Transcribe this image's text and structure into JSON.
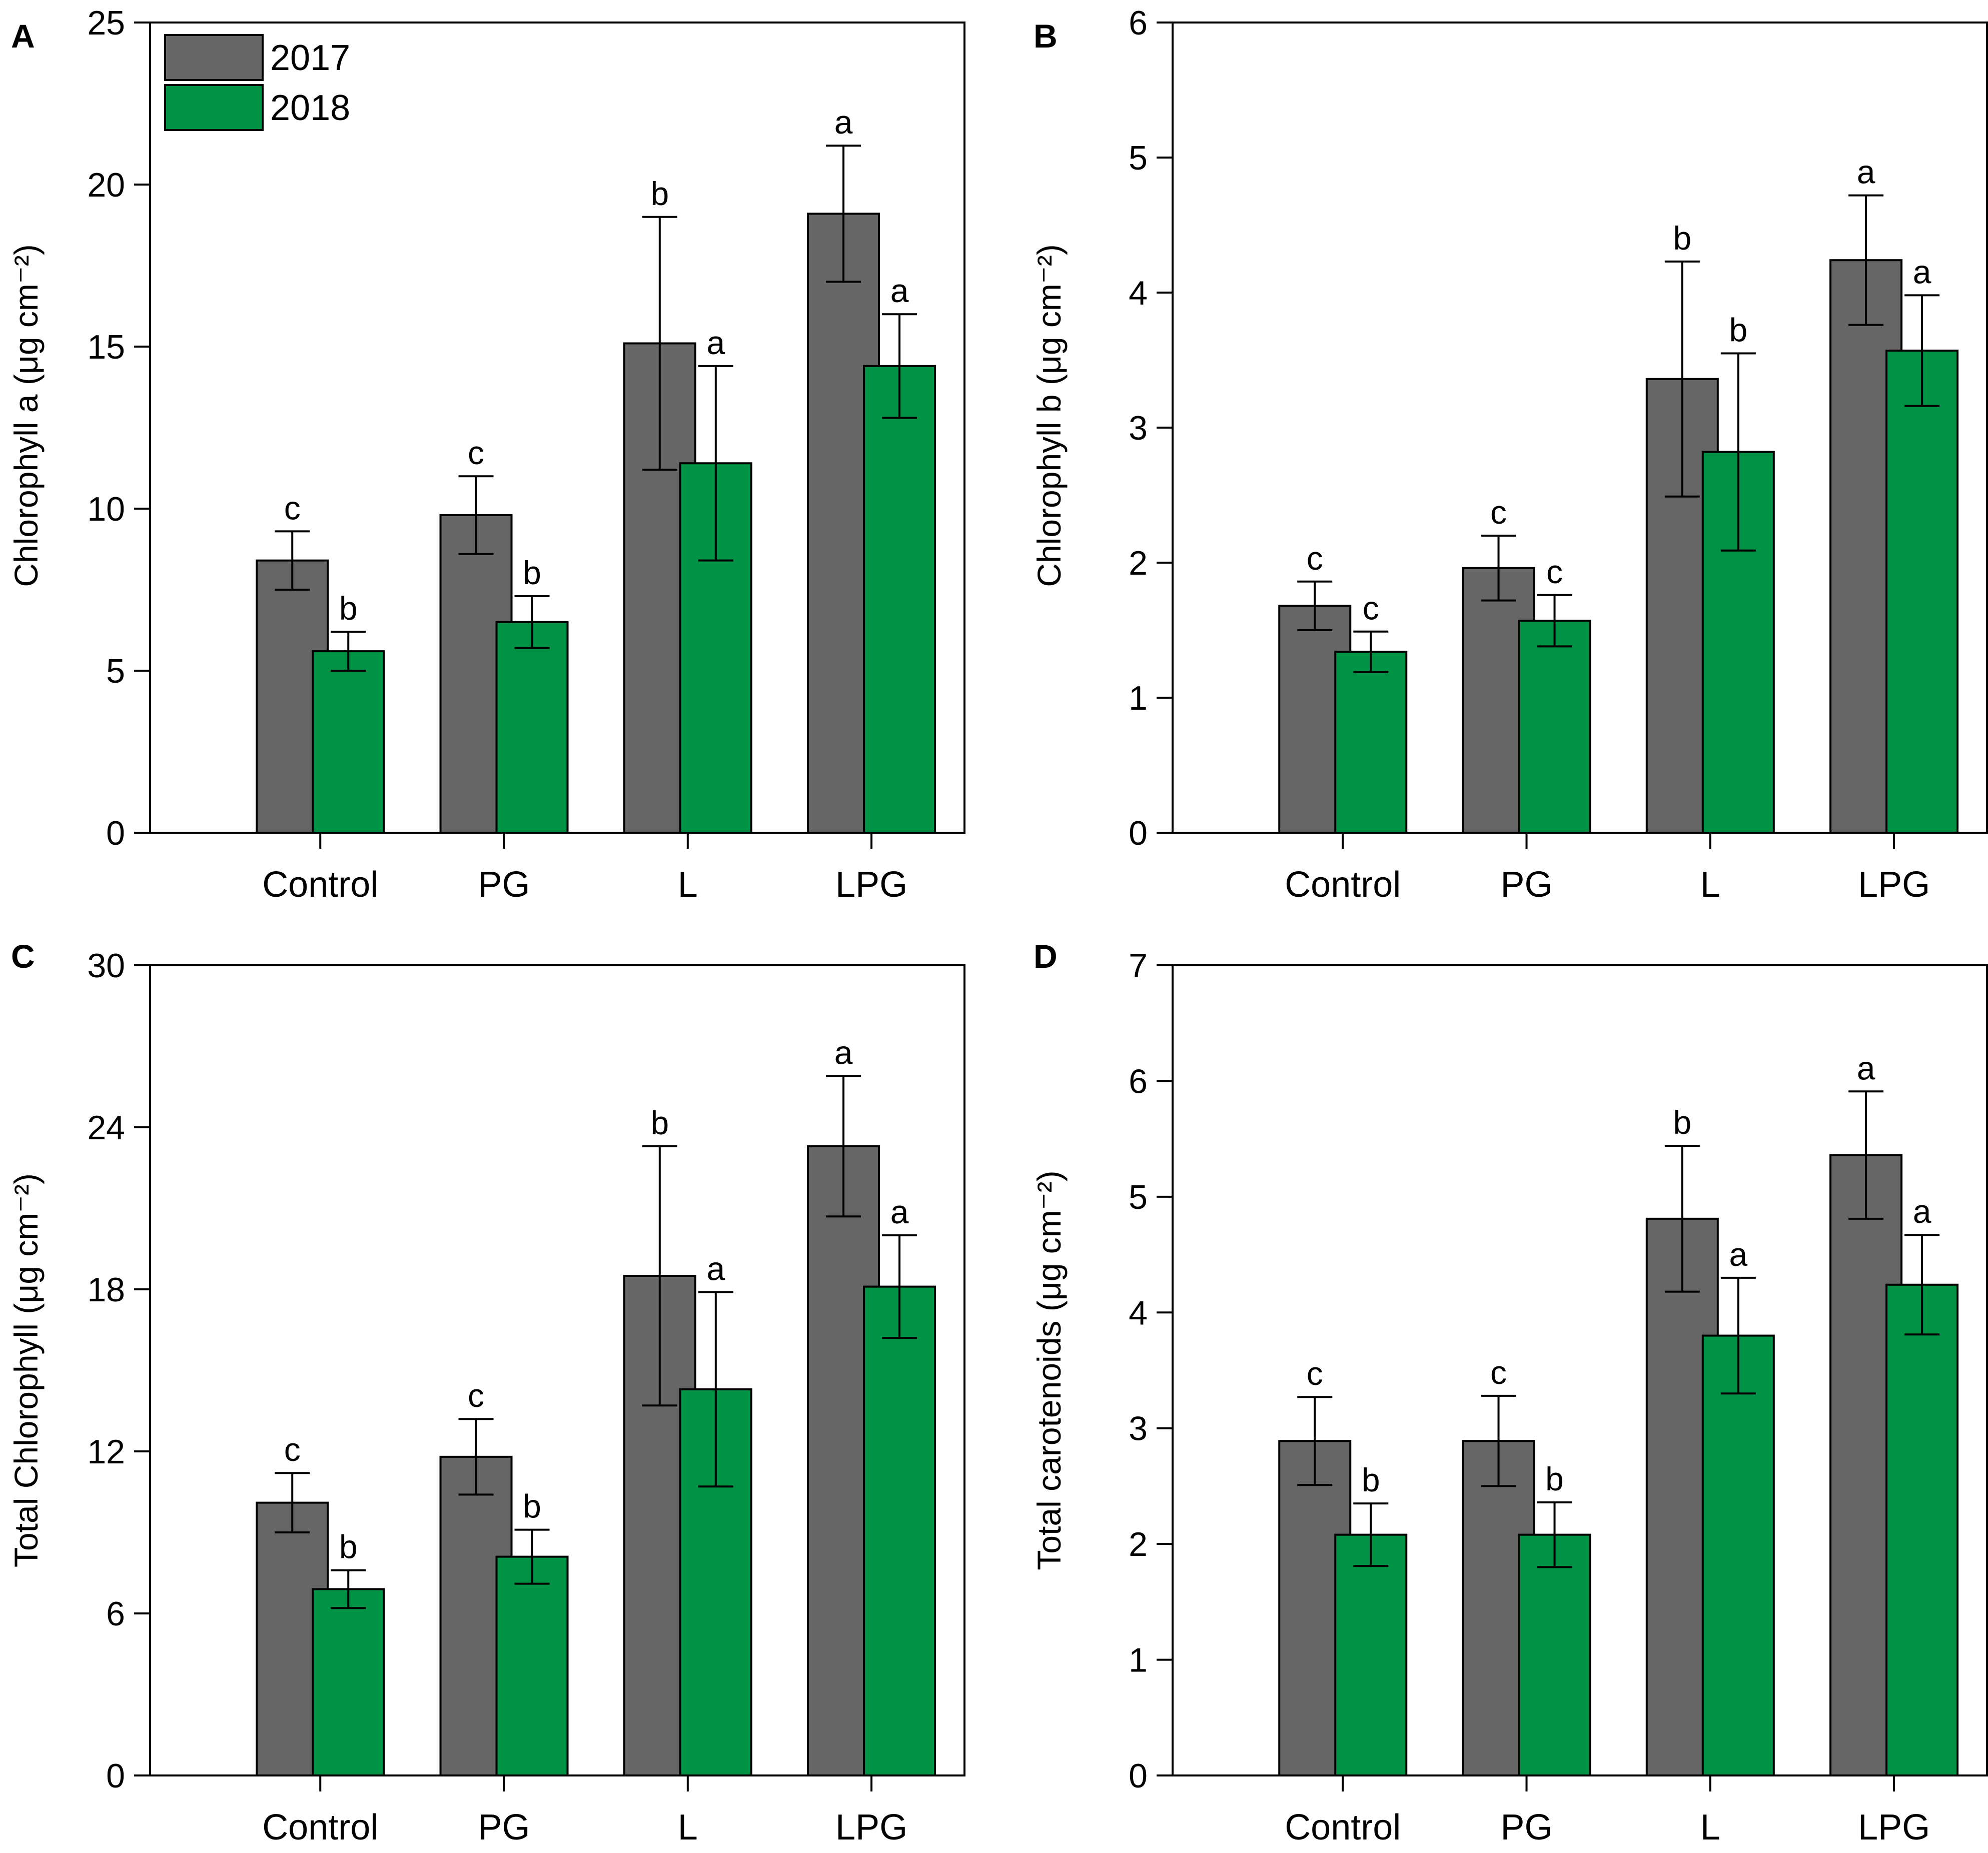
{
  "colors": {
    "series_2017": "#666666",
    "series_2018": "#009245",
    "axis": "#000000"
  },
  "legend": [
    {
      "name": "2017"
    },
    {
      "name": "2018"
    }
  ],
  "chart_data": [
    {
      "panel": "A",
      "type": "bar",
      "ylabel": "Chlorophyll a (μg cm⁻²)",
      "ylim": [
        0,
        25
      ],
      "yticks": [
        0,
        5,
        10,
        15,
        20,
        25
      ],
      "categories": [
        "Control",
        "PG",
        "L",
        "LPG"
      ],
      "series": [
        {
          "name": "2017",
          "values": [
            8.4,
            9.8,
            15.1,
            19.1
          ],
          "errors": [
            0.9,
            1.2,
            3.9,
            2.1
          ],
          "letters": [
            "c",
            "c",
            "b",
            "a"
          ]
        },
        {
          "name": "2018",
          "values": [
            5.6,
            6.5,
            11.4,
            14.4
          ],
          "errors": [
            0.6,
            0.8,
            3.0,
            1.6
          ],
          "letters": [
            "b",
            "b",
            "a",
            "a"
          ]
        }
      ]
    },
    {
      "panel": "B",
      "type": "bar",
      "ylabel": "Chlorophyll b (μg cm⁻²)",
      "ylim": [
        0,
        6
      ],
      "yticks": [
        0,
        1,
        2,
        3,
        4,
        5,
        6
      ],
      "categories": [
        "Control",
        "PG",
        "L",
        "LPG"
      ],
      "series": [
        {
          "name": "2017",
          "values": [
            1.68,
            1.96,
            3.36,
            4.24
          ],
          "errors": [
            0.18,
            0.24,
            0.87,
            0.48
          ],
          "letters": [
            "c",
            "c",
            "b",
            "a"
          ]
        },
        {
          "name": "2018",
          "values": [
            1.34,
            1.57,
            2.82,
            3.57
          ],
          "errors": [
            0.15,
            0.19,
            0.73,
            0.41
          ],
          "letters": [
            "c",
            "c",
            "b",
            "a"
          ]
        }
      ]
    },
    {
      "panel": "C",
      "type": "bar",
      "ylabel": "Total Chlorophyll (μg cm⁻²)",
      "ylim": [
        0,
        30
      ],
      "yticks": [
        0,
        6,
        12,
        18,
        24,
        30
      ],
      "categories": [
        "Control",
        "PG",
        "L",
        "LPG"
      ],
      "series": [
        {
          "name": "2017",
          "values": [
            10.1,
            11.8,
            18.5,
            23.3
          ],
          "errors": [
            1.1,
            1.4,
            4.8,
            2.6
          ],
          "letters": [
            "c",
            "c",
            "b",
            "a"
          ]
        },
        {
          "name": "2018",
          "values": [
            6.9,
            8.1,
            14.3,
            18.1
          ],
          "errors": [
            0.7,
            1.0,
            3.6,
            1.9
          ],
          "letters": [
            "b",
            "b",
            "a",
            "a"
          ]
        }
      ]
    },
    {
      "panel": "D",
      "type": "bar",
      "ylabel": "Total carotenoids (μg cm⁻²)",
      "ylim": [
        0,
        7
      ],
      "yticks": [
        0,
        1,
        2,
        3,
        4,
        5,
        6,
        7
      ],
      "categories": [
        "Control",
        "PG",
        "L",
        "LPG"
      ],
      "series": [
        {
          "name": "2017",
          "values": [
            2.89,
            2.89,
            4.81,
            5.36
          ],
          "errors": [
            0.38,
            0.39,
            0.63,
            0.55
          ],
          "letters": [
            "c",
            "c",
            "b",
            "a"
          ]
        },
        {
          "name": "2018",
          "values": [
            2.08,
            2.08,
            3.8,
            4.24
          ],
          "errors": [
            0.27,
            0.28,
            0.5,
            0.43
          ],
          "letters": [
            "b",
            "b",
            "a",
            "a"
          ]
        }
      ]
    }
  ]
}
